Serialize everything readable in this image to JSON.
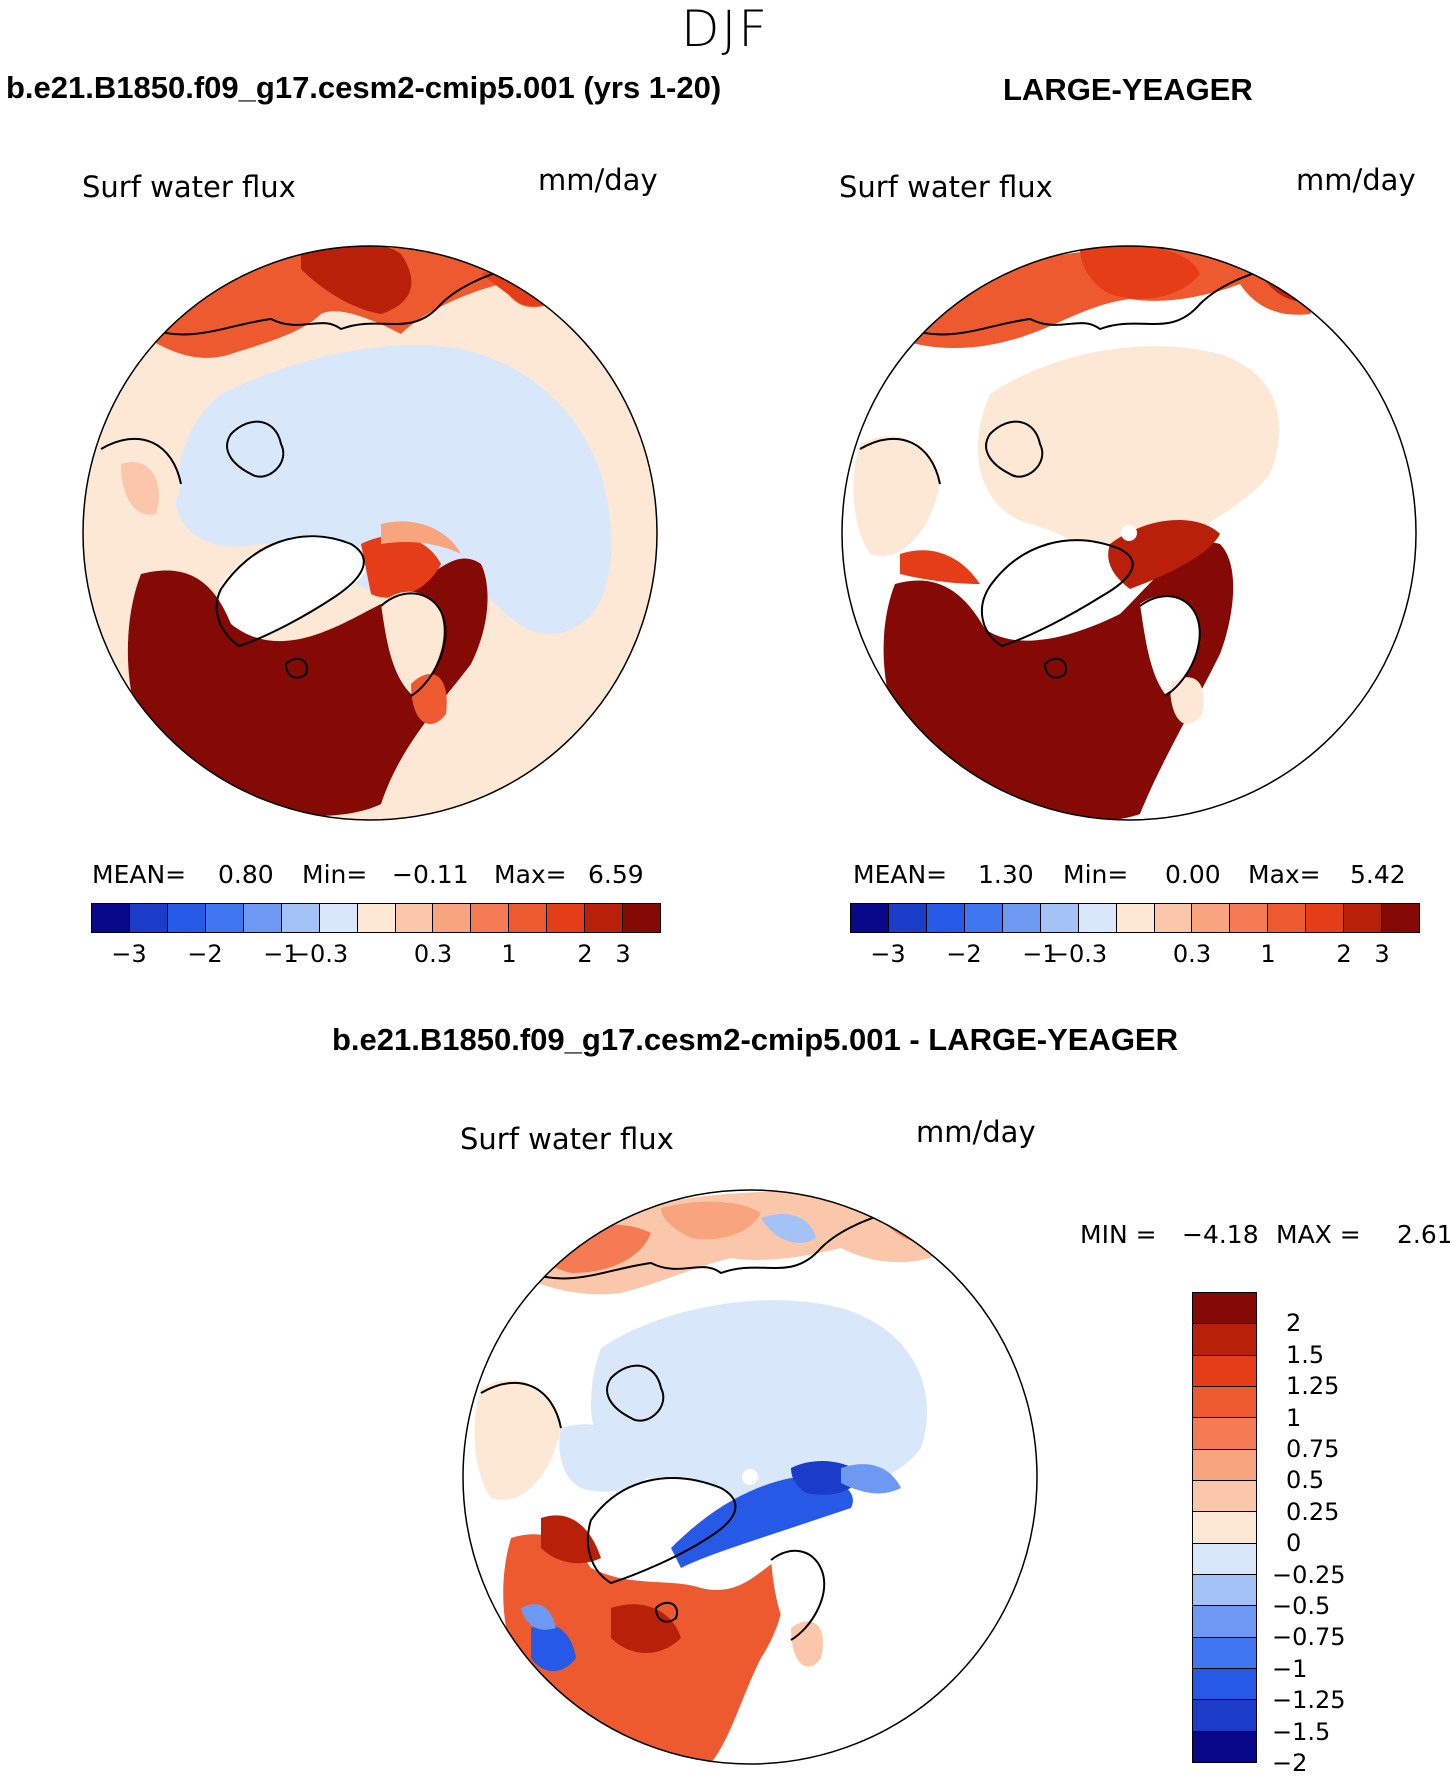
{
  "season": "DJF",
  "panels": {
    "left": {
      "title": "b.e21.B1850.f09_g17.cesm2-cmip5.001 (yrs 1-20)",
      "variable": "Surf water flux",
      "units": "mm/day",
      "stats": {
        "mean_label": "MEAN=",
        "mean": "0.80",
        "min_label": "Min=",
        "min": "−0.11",
        "max_label": "Max=",
        "max": "6.59"
      }
    },
    "right": {
      "title": "LARGE-YEAGER",
      "variable": "Surf water flux",
      "units": "mm/day",
      "stats": {
        "mean_label": "MEAN=",
        "mean": "1.30",
        "min_label": "Min=",
        "min": "0.00",
        "max_label": "Max=",
        "max": "5.42"
      }
    },
    "diff": {
      "title": "b.e21.B1850.f09_g17.cesm2-cmip5.001 - LARGE-YEAGER",
      "variable": "Surf water flux",
      "units": "mm/day",
      "minmax": {
        "min_label": "MIN =",
        "min": "−4.18",
        "max_label": "MAX =",
        "max": "2.61"
      }
    }
  },
  "colorbar_main": {
    "colors": [
      "#08088a",
      "#1a3cc8",
      "#2659e6",
      "#3f77f0",
      "#6d99f2",
      "#a3c2f5",
      "#d8e8fa",
      "#fde8d6",
      "#fbc7aa",
      "#f8a47f",
      "#f47b53",
      "#ee5a2f",
      "#e43d18",
      "#b8200a",
      "#850a05"
    ],
    "ticks": [
      "−3",
      "−2",
      "−1",
      "−0.3",
      "0.3",
      "1",
      "2",
      "3"
    ]
  },
  "colorbar_diff": {
    "colors": [
      "#850a05",
      "#b8200a",
      "#e43d18",
      "#ee5a2f",
      "#f47b53",
      "#f8a47f",
      "#fbc7aa",
      "#fde8d6",
      "#d8e8fa",
      "#a3c2f5",
      "#6d99f2",
      "#3f77f0",
      "#2659e6",
      "#1a3cc8",
      "#08088a"
    ],
    "ticks": [
      "2",
      "1.5",
      "1.25",
      "1",
      "0.75",
      "0.5",
      "0.25",
      "0",
      "−0.25",
      "−0.5",
      "−0.75",
      "−1",
      "−1.25",
      "−1.5",
      "−2"
    ]
  }
}
